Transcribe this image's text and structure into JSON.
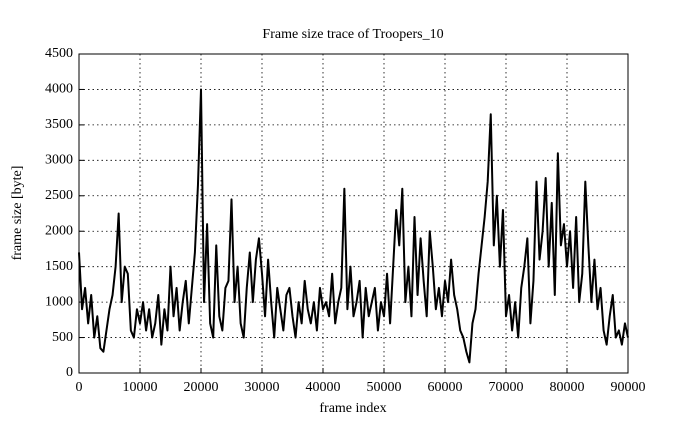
{
  "chart_data": {
    "type": "line",
    "title": "Frame size trace of Troopers_10",
    "x_label": "frame index",
    "y_label": "frame size [byte]",
    "xlim": [
      0,
      90000
    ],
    "xticks": [
      0,
      10000,
      20000,
      30000,
      40000,
      50000,
      60000,
      70000,
      80000,
      90000
    ],
    "ylim": [
      0,
      4500
    ],
    "yticks": [
      0,
      500,
      1000,
      1500,
      2000,
      2500,
      3000,
      3500,
      4000,
      4500
    ],
    "grid": true,
    "x": [
      0,
      500,
      1000,
      1500,
      2000,
      2500,
      3000,
      3500,
      4000,
      4500,
      5000,
      5500,
      6000,
      6500,
      7000,
      7500,
      8000,
      8500,
      9000,
      9500,
      10000,
      10500,
      11000,
      11500,
      12000,
      12500,
      13000,
      13500,
      14000,
      14500,
      15000,
      15500,
      16000,
      16500,
      17000,
      17500,
      18000,
      18500,
      19000,
      19500,
      20000,
      20500,
      21000,
      21500,
      22000,
      22500,
      23000,
      23500,
      24000,
      24500,
      25000,
      25500,
      26000,
      26500,
      27000,
      27500,
      28000,
      28500,
      29000,
      29500,
      30000,
      30500,
      31000,
      31500,
      32000,
      32500,
      33000,
      33500,
      34000,
      34500,
      35000,
      35500,
      36000,
      36500,
      37000,
      37500,
      38000,
      38500,
      39000,
      39500,
      40000,
      40500,
      41000,
      41500,
      42000,
      42500,
      43000,
      43500,
      44000,
      44500,
      45000,
      45500,
      46000,
      46500,
      47000,
      47500,
      48000,
      48500,
      49000,
      49500,
      50000,
      50500,
      51000,
      51500,
      52000,
      52500,
      53000,
      53500,
      54000,
      54500,
      55000,
      55500,
      56000,
      56500,
      57000,
      57500,
      58000,
      58500,
      59000,
      59500,
      60000,
      60500,
      61000,
      61500,
      62000,
      62500,
      63000,
      63500,
      64000,
      64500,
      65000,
      65500,
      66000,
      66500,
      67000,
      67500,
      68000,
      68500,
      69000,
      69500,
      70000,
      70500,
      71000,
      71500,
      72000,
      72500,
      73000,
      73500,
      74000,
      74500,
      75000,
      75500,
      76000,
      76500,
      77000,
      77500,
      78000,
      78500,
      79000,
      79500,
      80000,
      80500,
      81000,
      81500,
      82000,
      82500,
      83000,
      83500,
      84000,
      84500,
      85000,
      85500,
      86000,
      86500,
      87000,
      87500,
      88000,
      88500,
      89000,
      89500,
      90000
    ],
    "series": [
      {
        "color": "#000000",
        "values": [
          1700,
          900,
          1200,
          700,
          1100,
          500,
          800,
          350,
          300,
          600,
          900,
          1100,
          1500,
          2250,
          1000,
          1500,
          1400,
          600,
          500,
          900,
          700,
          1000,
          600,
          900,
          500,
          700,
          1100,
          400,
          900,
          600,
          1500,
          800,
          1200,
          600,
          1000,
          1300,
          700,
          1200,
          1700,
          2650,
          4000,
          1000,
          2100,
          700,
          500,
          1800,
          800,
          600,
          1200,
          1300,
          2450,
          1000,
          1500,
          700,
          500,
          1200,
          1700,
          1000,
          1600,
          1900,
          1400,
          800,
          1600,
          1000,
          500,
          1200,
          900,
          600,
          1100,
          1200,
          800,
          500,
          1000,
          700,
          1300,
          900,
          700,
          1000,
          600,
          1200,
          900,
          1000,
          800,
          1400,
          700,
          1000,
          1200,
          2600,
          900,
          1500,
          800,
          1000,
          1300,
          500,
          1200,
          800,
          1000,
          1200,
          600,
          1000,
          800,
          1400,
          700,
          1500,
          2300,
          1800,
          2600,
          1000,
          1500,
          800,
          2200,
          1100,
          1900,
          1300,
          800,
          2000,
          1500,
          900,
          1200,
          800,
          1300,
          1000,
          1600,
          1100,
          900,
          600,
          500,
          300,
          150,
          700,
          900,
          1400,
          1800,
          2200,
          2700,
          3650,
          1800,
          2500,
          1500,
          2300,
          800,
          1100,
          600,
          1000,
          500,
          1200,
          1500,
          1900,
          700,
          1300,
          2700,
          1600,
          2000,
          2750,
          1500,
          2400,
          1100,
          3100,
          1800,
          2100,
          1500,
          2000,
          1200,
          2200,
          1000,
          1400,
          2700,
          1800,
          1000,
          1600,
          900,
          1200,
          600,
          400,
          800,
          1100,
          500,
          600,
          400,
          700,
          500
        ]
      }
    ]
  }
}
